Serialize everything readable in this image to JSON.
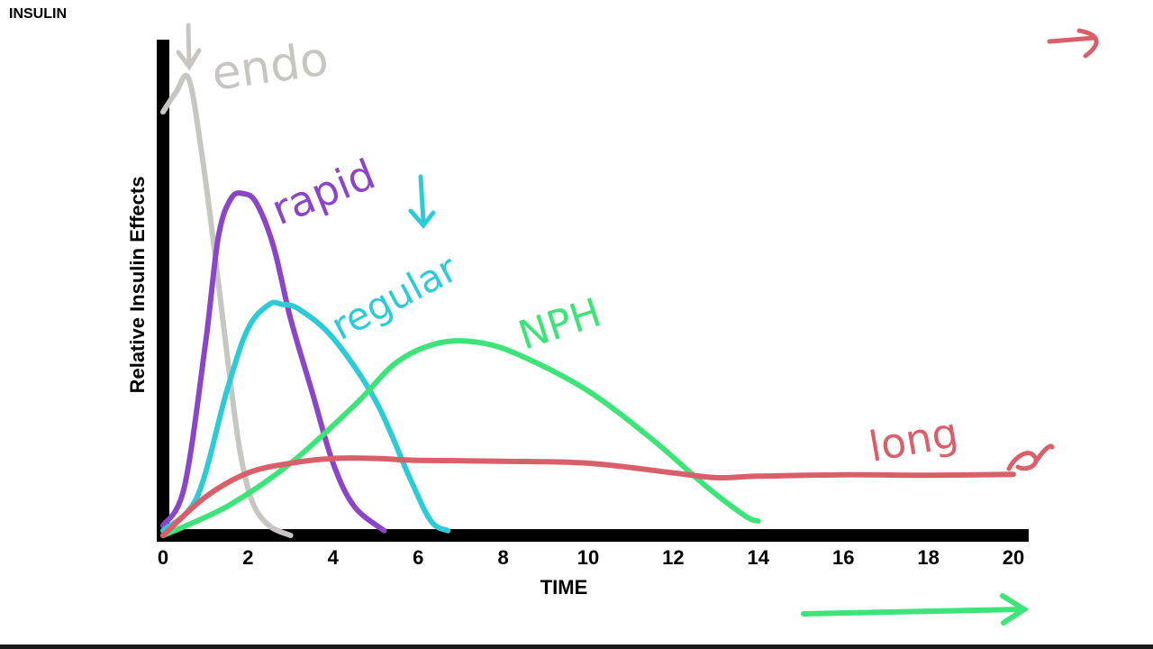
{
  "page": {
    "title": "INSULIN"
  },
  "chart_data": {
    "type": "line",
    "title": "",
    "xlabel": "TIME",
    "ylabel": "Relative Insulin Effects",
    "xlim": [
      0,
      20
    ],
    "ylim": [
      0,
      1
    ],
    "x_ticks": [
      "0",
      "2",
      "4",
      "6",
      "8",
      "10",
      "12",
      "14",
      "16",
      "18",
      "20"
    ],
    "grid": false,
    "series": [
      {
        "name": "endo",
        "color": "#c8c6c2",
        "x": [
          0,
          0.3,
          0.6,
          0.9,
          1.2,
          1.5,
          1.8,
          2.1,
          2.5,
          3.0
        ],
        "y": [
          0.88,
          0.92,
          0.95,
          0.8,
          0.6,
          0.38,
          0.18,
          0.07,
          0.02,
          0.0
        ]
      },
      {
        "name": "rapid",
        "color": "#8b45c7",
        "x": [
          0,
          0.5,
          1.0,
          1.3,
          1.6,
          1.9,
          2.2,
          2.6,
          3.0,
          3.5,
          4.0,
          4.5,
          5.2
        ],
        "y": [
          0.02,
          0.1,
          0.4,
          0.62,
          0.7,
          0.71,
          0.69,
          0.6,
          0.45,
          0.3,
          0.15,
          0.06,
          0.01
        ]
      },
      {
        "name": "regular",
        "color": "#2ecbd6",
        "x": [
          0,
          0.8,
          1.5,
          2.0,
          2.5,
          2.8,
          3.2,
          4.0,
          5.0,
          5.8,
          6.3,
          6.7
        ],
        "y": [
          0.01,
          0.08,
          0.3,
          0.43,
          0.48,
          0.48,
          0.47,
          0.41,
          0.28,
          0.12,
          0.03,
          0.01
        ]
      },
      {
        "name": "NPH",
        "color": "#3ee37a",
        "x": [
          0,
          1.5,
          3.0,
          4.5,
          5.5,
          6.5,
          7.5,
          8.5,
          10.0,
          11.5,
          12.8,
          13.7,
          14.0
        ],
        "y": [
          0.0,
          0.06,
          0.15,
          0.27,
          0.36,
          0.4,
          0.4,
          0.37,
          0.3,
          0.2,
          0.1,
          0.04,
          0.03
        ]
      },
      {
        "name": "long",
        "color": "#d9606a",
        "x": [
          0,
          1,
          2,
          3,
          4,
          5,
          6,
          8,
          10,
          12,
          13,
          14,
          16,
          18,
          20
        ],
        "y": [
          0.0,
          0.08,
          0.13,
          0.15,
          0.16,
          0.16,
          0.156,
          0.154,
          0.15,
          0.13,
          0.12,
          0.123,
          0.126,
          0.125,
          0.127
        ]
      }
    ]
  },
  "annotations": {
    "endo": "endo",
    "rapid": "rapid",
    "regular": "regular",
    "nph": "NPH",
    "long": "long"
  }
}
